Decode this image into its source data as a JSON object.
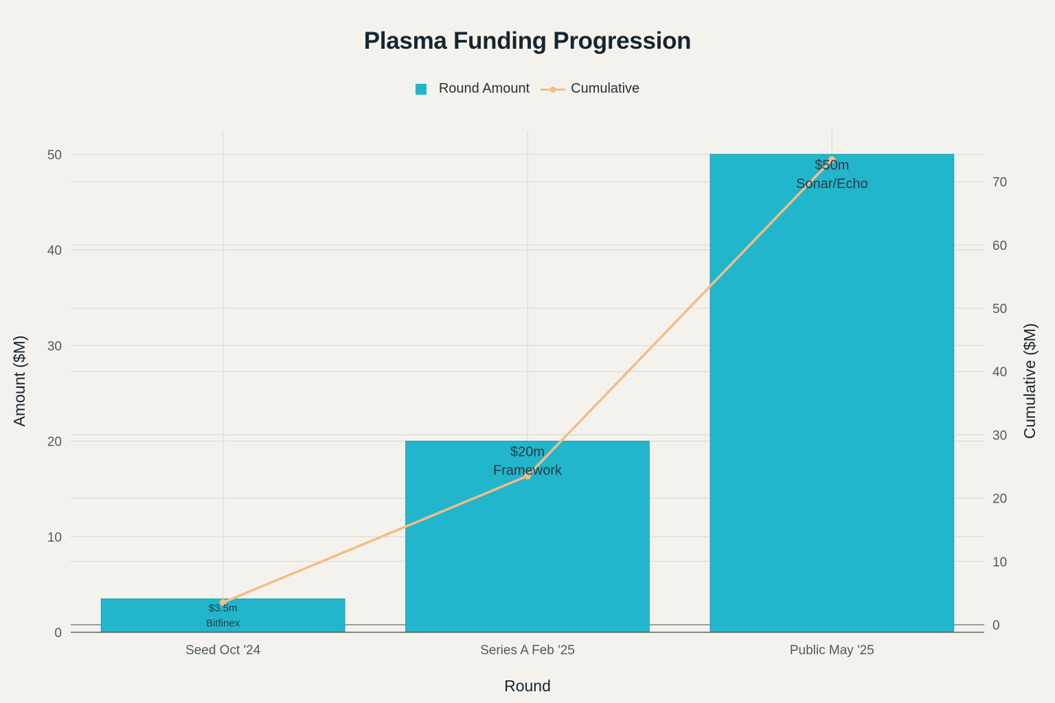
{
  "chart_data": {
    "type": "bar",
    "title": "Plasma Funding Progression",
    "xlabel": "Round",
    "ylabel": "Amount ($M)",
    "y2label": "Cumulative ($M)",
    "categories": [
      "Seed Oct '24",
      "Series A Feb '25",
      "Public May '25"
    ],
    "series": [
      {
        "name": "Round Amount",
        "type": "bar",
        "axis": "left",
        "values": [
          3.5,
          20,
          50
        ],
        "color": "#21b6cc"
      },
      {
        "name": "Cumulative",
        "type": "line",
        "axis": "right",
        "values": [
          3.5,
          23.5,
          73.5
        ],
        "color": "#f4bd82"
      }
    ],
    "bar_labels": [
      {
        "amount": "$3.5m",
        "investor": "Bitfinex"
      },
      {
        "amount": "$20m",
        "investor": "Framework"
      },
      {
        "amount": "$50m",
        "investor": "Sonar/Echo"
      }
    ],
    "ylim": [
      0,
      52.5
    ],
    "yticks": [
      0,
      10,
      20,
      30,
      40,
      50
    ],
    "y2lim": [
      -1.2,
      78.1
    ],
    "y2ticks": [
      0,
      10,
      20,
      30,
      40,
      50,
      60,
      70
    ],
    "grid": true,
    "legend_position": "top-center"
  }
}
